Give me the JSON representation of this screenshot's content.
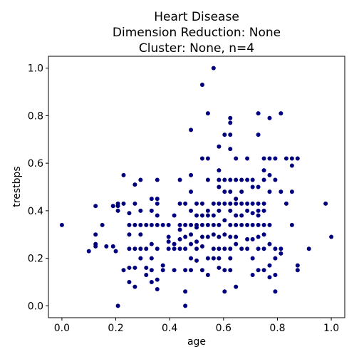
{
  "chart_data": {
    "type": "scatter",
    "title": [
      "Heart Disease",
      "Dimension Reduction: None",
      "Cluster: None, n=4"
    ],
    "xlabel": "age",
    "ylabel": "trestbps",
    "xlim": [
      -0.05,
      1.05
    ],
    "ylim": [
      -0.05,
      1.05
    ],
    "xticks": [
      "0.0",
      "0.2",
      "0.4",
      "0.6",
      "0.8",
      "1.0"
    ],
    "yticks": [
      "0.0",
      "0.2",
      "0.4",
      "0.6",
      "0.8",
      "1.0"
    ],
    "grid": false,
    "marker_color": "#00007f",
    "points": [
      [
        0.0,
        0.34
      ],
      [
        0.1,
        0.23
      ],
      [
        0.125,
        0.25
      ],
      [
        0.125,
        0.3
      ],
      [
        0.125,
        0.42
      ],
      [
        0.125,
        0.26
      ],
      [
        0.15,
        0.34
      ],
      [
        0.165,
        0.25
      ],
      [
        0.19,
        0.25
      ],
      [
        0.19,
        0.42
      ],
      [
        0.19,
        0.42
      ],
      [
        0.2,
        0.23
      ],
      [
        0.208,
        0.0
      ],
      [
        0.208,
        0.43
      ],
      [
        0.208,
        0.42
      ],
      [
        0.208,
        0.4
      ],
      [
        0.229,
        0.55
      ],
      [
        0.229,
        0.43
      ],
      [
        0.229,
        0.15
      ],
      [
        0.25,
        0.39
      ],
      [
        0.25,
        0.34
      ],
      [
        0.25,
        0.3
      ],
      [
        0.25,
        0.24
      ],
      [
        0.25,
        0.16
      ],
      [
        0.25,
        0.1
      ],
      [
        0.271,
        0.51
      ],
      [
        0.271,
        0.43
      ],
      [
        0.271,
        0.34
      ],
      [
        0.271,
        0.24
      ],
      [
        0.271,
        0.16
      ],
      [
        0.271,
        0.08
      ],
      [
        0.292,
        0.53
      ],
      [
        0.292,
        0.4
      ],
      [
        0.292,
        0.34
      ],
      [
        0.292,
        0.3
      ],
      [
        0.292,
        0.24
      ],
      [
        0.292,
        0.2
      ],
      [
        0.313,
        0.34
      ],
      [
        0.313,
        0.24
      ],
      [
        0.313,
        0.16
      ],
      [
        0.313,
        0.13
      ],
      [
        0.333,
        0.45
      ],
      [
        0.333,
        0.4
      ],
      [
        0.333,
        0.34
      ],
      [
        0.333,
        0.26
      ],
      [
        0.333,
        0.2
      ],
      [
        0.333,
        0.15
      ],
      [
        0.333,
        0.1
      ],
      [
        0.354,
        0.53
      ],
      [
        0.354,
        0.45
      ],
      [
        0.354,
        0.43
      ],
      [
        0.354,
        0.38
      ],
      [
        0.354,
        0.34
      ],
      [
        0.354,
        0.24
      ],
      [
        0.354,
        0.11
      ],
      [
        0.354,
        0.07
      ],
      [
        0.375,
        0.34
      ],
      [
        0.375,
        0.17
      ],
      [
        0.375,
        0.15
      ],
      [
        0.396,
        0.34
      ],
      [
        0.396,
        0.29
      ],
      [
        0.396,
        0.27
      ],
      [
        0.396,
        0.24
      ],
      [
        0.417,
        0.38
      ],
      [
        0.417,
        0.26
      ],
      [
        0.417,
        0.24
      ],
      [
        0.417,
        0.15
      ],
      [
        0.438,
        0.53
      ],
      [
        0.438,
        0.43
      ],
      [
        0.438,
        0.34
      ],
      [
        0.438,
        0.32
      ],
      [
        0.438,
        0.28
      ],
      [
        0.438,
        0.24
      ],
      [
        0.458,
        0.43
      ],
      [
        0.458,
        0.34
      ],
      [
        0.458,
        0.29
      ],
      [
        0.458,
        0.24
      ],
      [
        0.458,
        0.15
      ],
      [
        0.458,
        0.06
      ],
      [
        0.458,
        0.0
      ],
      [
        0.479,
        0.74
      ],
      [
        0.479,
        0.55
      ],
      [
        0.479,
        0.48
      ],
      [
        0.479,
        0.4
      ],
      [
        0.479,
        0.34
      ],
      [
        0.479,
        0.3
      ],
      [
        0.479,
        0.26
      ],
      [
        0.479,
        0.2
      ],
      [
        0.479,
        0.15
      ],
      [
        0.5,
        0.43
      ],
      [
        0.5,
        0.38
      ],
      [
        0.5,
        0.34
      ],
      [
        0.5,
        0.33
      ],
      [
        0.5,
        0.27
      ],
      [
        0.5,
        0.24
      ],
      [
        0.5,
        0.19
      ],
      [
        0.521,
        0.93
      ],
      [
        0.521,
        0.62
      ],
      [
        0.521,
        0.43
      ],
      [
        0.521,
        0.38
      ],
      [
        0.521,
        0.34
      ],
      [
        0.521,
        0.29
      ],
      [
        0.521,
        0.25
      ],
      [
        0.521,
        0.15
      ],
      [
        0.542,
        0.81
      ],
      [
        0.542,
        0.62
      ],
      [
        0.542,
        0.53
      ],
      [
        0.542,
        0.4
      ],
      [
        0.542,
        0.38
      ],
      [
        0.542,
        0.34
      ],
      [
        0.542,
        0.29
      ],
      [
        0.542,
        0.2
      ],
      [
        0.542,
        0.13
      ],
      [
        0.563,
        1.0
      ],
      [
        0.563,
        0.43
      ],
      [
        0.563,
        0.38
      ],
      [
        0.563,
        0.34
      ],
      [
        0.563,
        0.3
      ],
      [
        0.563,
        0.24
      ],
      [
        0.563,
        0.2
      ],
      [
        0.583,
        0.67
      ],
      [
        0.583,
        0.57
      ],
      [
        0.583,
        0.53
      ],
      [
        0.583,
        0.5
      ],
      [
        0.583,
        0.43
      ],
      [
        0.583,
        0.4
      ],
      [
        0.583,
        0.34
      ],
      [
        0.583,
        0.29
      ],
      [
        0.583,
        0.24
      ],
      [
        0.583,
        0.2
      ],
      [
        0.583,
        0.16
      ],
      [
        0.604,
        0.72
      ],
      [
        0.604,
        0.53
      ],
      [
        0.604,
        0.48
      ],
      [
        0.604,
        0.43
      ],
      [
        0.604,
        0.36
      ],
      [
        0.604,
        0.3
      ],
      [
        0.604,
        0.24
      ],
      [
        0.604,
        0.15
      ],
      [
        0.604,
        0.06
      ],
      [
        0.625,
        0.79
      ],
      [
        0.625,
        0.77
      ],
      [
        0.625,
        0.72
      ],
      [
        0.625,
        0.66
      ],
      [
        0.625,
        0.53
      ],
      [
        0.625,
        0.48
      ],
      [
        0.625,
        0.43
      ],
      [
        0.625,
        0.4
      ],
      [
        0.625,
        0.34
      ],
      [
        0.625,
        0.29
      ],
      [
        0.625,
        0.24
      ],
      [
        0.625,
        0.2
      ],
      [
        0.625,
        0.15
      ],
      [
        0.646,
        0.62
      ],
      [
        0.646,
        0.53
      ],
      [
        0.646,
        0.45
      ],
      [
        0.646,
        0.43
      ],
      [
        0.646,
        0.38
      ],
      [
        0.646,
        0.34
      ],
      [
        0.646,
        0.29
      ],
      [
        0.646,
        0.26
      ],
      [
        0.646,
        0.08
      ],
      [
        0.667,
        0.53
      ],
      [
        0.667,
        0.48
      ],
      [
        0.667,
        0.43
      ],
      [
        0.667,
        0.38
      ],
      [
        0.667,
        0.34
      ],
      [
        0.667,
        0.24
      ],
      [
        0.688,
        0.62
      ],
      [
        0.688,
        0.53
      ],
      [
        0.688,
        0.43
      ],
      [
        0.688,
        0.4
      ],
      [
        0.688,
        0.34
      ],
      [
        0.688,
        0.28
      ],
      [
        0.688,
        0.24
      ],
      [
        0.708,
        0.53
      ],
      [
        0.708,
        0.5
      ],
      [
        0.708,
        0.43
      ],
      [
        0.708,
        0.39
      ],
      [
        0.708,
        0.34
      ],
      [
        0.708,
        0.28
      ],
      [
        0.708,
        0.2
      ],
      [
        0.708,
        0.13
      ],
      [
        0.729,
        0.81
      ],
      [
        0.729,
        0.72
      ],
      [
        0.729,
        0.5
      ],
      [
        0.729,
        0.43
      ],
      [
        0.729,
        0.4
      ],
      [
        0.729,
        0.38
      ],
      [
        0.729,
        0.34
      ],
      [
        0.729,
        0.29
      ],
      [
        0.729,
        0.24
      ],
      [
        0.729,
        0.15
      ],
      [
        0.75,
        0.62
      ],
      [
        0.75,
        0.57
      ],
      [
        0.75,
        0.53
      ],
      [
        0.75,
        0.43
      ],
      [
        0.75,
        0.4
      ],
      [
        0.75,
        0.34
      ],
      [
        0.75,
        0.3
      ],
      [
        0.75,
        0.24
      ],
      [
        0.75,
        0.15
      ],
      [
        0.771,
        0.79
      ],
      [
        0.771,
        0.62
      ],
      [
        0.771,
        0.55
      ],
      [
        0.771,
        0.48
      ],
      [
        0.771,
        0.34
      ],
      [
        0.771,
        0.26
      ],
      [
        0.771,
        0.17
      ],
      [
        0.771,
        0.12
      ],
      [
        0.792,
        0.62
      ],
      [
        0.792,
        0.53
      ],
      [
        0.792,
        0.24
      ],
      [
        0.792,
        0.2
      ],
      [
        0.792,
        0.13
      ],
      [
        0.792,
        0.06
      ],
      [
        0.813,
        0.81
      ],
      [
        0.813,
        0.48
      ],
      [
        0.813,
        0.24
      ],
      [
        0.813,
        0.22
      ],
      [
        0.833,
        0.62
      ],
      [
        0.833,
        0.43
      ],
      [
        0.854,
        0.62
      ],
      [
        0.854,
        0.59
      ],
      [
        0.854,
        0.48
      ],
      [
        0.854,
        0.34
      ],
      [
        0.875,
        0.62
      ],
      [
        0.875,
        0.17
      ],
      [
        0.875,
        0.15
      ],
      [
        0.917,
        0.24
      ],
      [
        0.979,
        0.43
      ],
      [
        1.0,
        0.29
      ]
    ]
  }
}
